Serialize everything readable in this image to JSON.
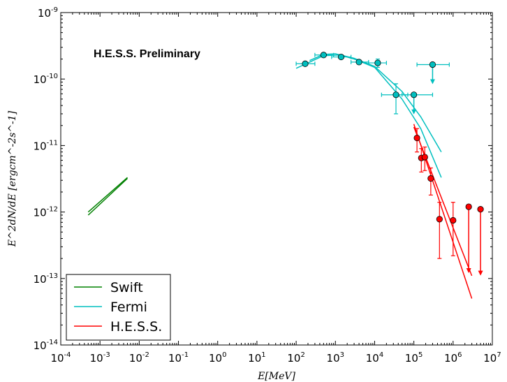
{
  "chart_data": {
    "type": "scatter",
    "title": "",
    "xlabel": "E[MeV]",
    "ylabel": "E^2dN/dE [ergcm^-2s^-1]",
    "xscale": "log",
    "yscale": "log",
    "xlim": [
      0.0001,
      10000000
    ],
    "ylim": [
      1e-14,
      1e-09
    ],
    "x_ticks": [
      {
        "base": "10",
        "exp": "-4"
      },
      {
        "base": "10",
        "exp": "-3"
      },
      {
        "base": "10",
        "exp": "-2"
      },
      {
        "base": "10",
        "exp": "-1"
      },
      {
        "base": "10",
        "exp": "0"
      },
      {
        "base": "10",
        "exp": "1"
      },
      {
        "base": "10",
        "exp": "2"
      },
      {
        "base": "10",
        "exp": "3"
      },
      {
        "base": "10",
        "exp": "4"
      },
      {
        "base": "10",
        "exp": "5"
      },
      {
        "base": "10",
        "exp": "6"
      },
      {
        "base": "10",
        "exp": "7"
      }
    ],
    "y_ticks": [
      {
        "base": "10",
        "exp": "-14"
      },
      {
        "base": "10",
        "exp": "-13"
      },
      {
        "base": "10",
        "exp": "-12"
      },
      {
        "base": "10",
        "exp": "-11"
      },
      {
        "base": "10",
        "exp": "-10"
      },
      {
        "base": "10",
        "exp": "-9"
      }
    ],
    "annotation": "H.E.S.S. Preliminary",
    "legend": {
      "position": "lower-left",
      "entries": [
        {
          "label": "Swift",
          "color": "#008000"
        },
        {
          "label": "Fermi",
          "color": "#00bfbf"
        },
        {
          "label": "H.E.S.S.",
          "color": "#ff0000"
        }
      ]
    },
    "series": [
      {
        "name": "Swift",
        "color": "#008000",
        "lines": [
          {
            "x": [
              0.0005,
              0.005
            ],
            "y": [
              9e-13,
              3.2e-12
            ]
          },
          {
            "x": [
              0.0005,
              0.005
            ],
            "y": [
              1e-12,
              3.3e-12
            ]
          }
        ]
      },
      {
        "name": "Fermi",
        "color": "#00bfbf",
        "points": [
          {
            "x": 170,
            "y": 1.7e-10,
            "xerr": [
              100,
              300
            ]
          },
          {
            "x": 500,
            "y": 2.3e-10,
            "xerr": [
              300,
              900
            ]
          },
          {
            "x": 1400,
            "y": 2.15e-10,
            "xerr": [
              800,
              2500
            ]
          },
          {
            "x": 4000,
            "y": 1.8e-10,
            "xerr": [
              2500,
              7000
            ]
          },
          {
            "x": 12000,
            "y": 1.75e-10,
            "xerr": [
              7000,
              20000
            ],
            "yerr": [
              1.5e-10,
              2e-10
            ]
          },
          {
            "x": 35000,
            "y": 5.8e-11,
            "xerr": [
              15000,
              70000
            ],
            "yerr": [
              3e-11,
              8.5e-11
            ]
          },
          {
            "x": 100000,
            "y": 5.8e-11,
            "xerr": [
              50000,
              300000
            ],
            "upper_limit": true
          },
          {
            "x": 300000,
            "y": 1.65e-10,
            "xerr": [
              120000,
              800000
            ],
            "upper_limit": true
          }
        ],
        "models": [
          {
            "x": [
              100,
              500,
              1300,
              3000,
              10000,
              50000,
              150000,
              500000
            ],
            "y": [
              1.45e-10,
              2.25e-10,
              2.3e-10,
              2e-10,
              1.5e-10,
              5e-11,
              1.8e-11,
              3.3e-12
            ]
          },
          {
            "x": [
              220,
              500,
              1000,
              3000,
              10000,
              50000,
              150000,
              500000
            ],
            "y": [
              1.9e-10,
              2.35e-10,
              2.4e-10,
              2.05e-10,
              1.55e-10,
              6.5e-11,
              2.7e-11,
              8e-12
            ]
          }
        ]
      },
      {
        "name": "H.E.S.S.",
        "color": "#ff0000",
        "points": [
          {
            "x": 120000,
            "y": 1.3e-11,
            "yerr": [
              8e-12,
              1.8e-11
            ]
          },
          {
            "x": 155000,
            "y": 6.5e-12,
            "yerr": [
              4e-12,
              9e-12
            ]
          },
          {
            "x": 190000,
            "y": 6.7e-12,
            "yerr": [
              4.2e-12,
              9.5e-12
            ]
          },
          {
            "x": 270000,
            "y": 3.2e-12,
            "yerr": [
              1.8e-12,
              4.6e-12
            ]
          },
          {
            "x": 450000,
            "y": 7.8e-13,
            "yerr": [
              2e-13,
              1.4e-12
            ]
          },
          {
            "x": 1000000,
            "y": 7.5e-13,
            "yerr": [
              2.2e-13,
              1.4e-12
            ]
          },
          {
            "x": 2500000,
            "y": 1.2e-12,
            "upper_limit": true
          },
          {
            "x": 5000000,
            "y": 1.1e-12,
            "upper_limit": true
          }
        ],
        "models": [
          {
            "x": [
              100000,
              3000000
            ],
            "y": [
              2.1e-11,
              5e-14
            ]
          },
          {
            "x": [
              100000,
              3000000
            ],
            "y": [
              1.9e-11,
              1.1e-13
            ]
          }
        ]
      }
    ]
  }
}
